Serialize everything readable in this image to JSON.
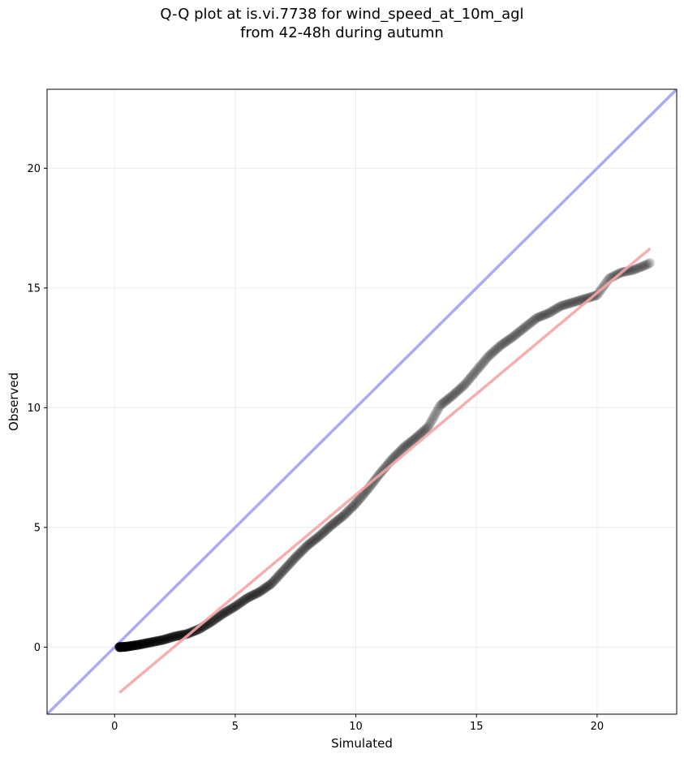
{
  "title_line1": "Q-Q plot at is.vi.7738 for wind_speed_at_10m_agl",
  "title_line2": "from 42-48h during autumn",
  "chart_data": {
    "type": "scatter",
    "xlabel": "Simulated",
    "ylabel": "Observed",
    "xlim": [
      -2.8,
      23.3
    ],
    "ylim": [
      -2.8,
      23.3
    ],
    "xticks": [
      0,
      5,
      10,
      15,
      20
    ],
    "yticks": [
      0,
      5,
      10,
      15,
      20
    ],
    "grid": true,
    "colors": {
      "points": "#000000",
      "identity_line": "#aaaaf5",
      "fit_line": "#f5a5a5"
    },
    "identity_line": {
      "x": [
        -2.8,
        23.3
      ],
      "y": [
        -2.8,
        23.3
      ]
    },
    "fit_line": {
      "x": [
        0.2,
        22.2
      ],
      "y": [
        -1.9,
        16.65
      ]
    },
    "anchors": {
      "x": [
        0.2,
        0.5,
        1.0,
        1.5,
        2.0,
        2.5,
        3.0,
        3.5,
        4.0,
        4.5,
        5.0,
        5.5,
        6.0,
        6.5,
        7.0,
        7.5,
        8.0,
        8.5,
        9.0,
        9.5,
        10.0,
        10.5,
        11.0,
        11.5,
        12.0,
        12.5,
        13.0,
        13.5,
        14.0,
        14.5,
        15.0,
        15.5,
        16.0,
        16.5,
        17.0,
        17.5,
        18.0,
        18.5,
        19.0,
        19.5,
        20.0,
        20.5,
        21.0,
        21.5,
        22.0,
        22.2
      ],
      "y": [
        0.0,
        0.02,
        0.1,
        0.2,
        0.3,
        0.45,
        0.55,
        0.75,
        1.05,
        1.4,
        1.7,
        2.05,
        2.3,
        2.65,
        3.2,
        3.75,
        4.25,
        4.65,
        5.1,
        5.5,
        6.0,
        6.6,
        7.25,
        7.85,
        8.35,
        8.75,
        9.2,
        10.1,
        10.5,
        10.95,
        11.55,
        12.15,
        12.6,
        12.95,
        13.35,
        13.75,
        13.95,
        14.25,
        14.4,
        14.55,
        14.7,
        15.4,
        15.65,
        15.75,
        15.95,
        16.05
      ]
    }
  }
}
